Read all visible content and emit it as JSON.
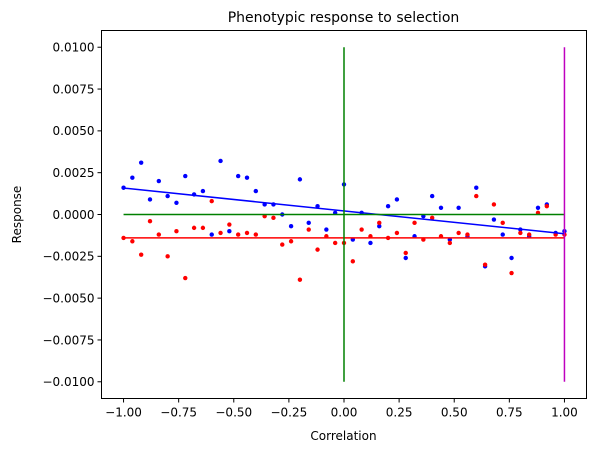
{
  "chart_data": {
    "type": "scatter",
    "title": "Phenotypic response to selection",
    "xlabel": "Correlation",
    "ylabel": "Response",
    "xlim": [
      -1.1,
      1.1
    ],
    "ylim": [
      -0.011,
      0.011
    ],
    "grid": false,
    "x_ticks": [
      -1.0,
      -0.75,
      -0.5,
      -0.25,
      0.0,
      0.25,
      0.5,
      0.75,
      1.0
    ],
    "x_tick_labels": [
      "−1.00",
      "−0.75",
      "−0.50",
      "−0.25",
      "0.00",
      "0.25",
      "0.50",
      "0.75",
      "1.00"
    ],
    "y_ticks": [
      -0.01,
      -0.0075,
      -0.005,
      -0.0025,
      0.0,
      0.0025,
      0.005,
      0.0075,
      0.01
    ],
    "y_tick_labels": [
      "−0.0100",
      "−0.0075",
      "−0.0050",
      "−0.0025",
      "0.0000",
      "0.0025",
      "0.0050",
      "0.0075",
      "0.0100"
    ],
    "series": [
      {
        "color": "#0000ff",
        "points": [
          [
            -1.0,
            0.0016
          ],
          [
            -0.96,
            0.0022
          ],
          [
            -0.92,
            0.0031
          ],
          [
            -0.88,
            0.0009
          ],
          [
            -0.84,
            0.002
          ],
          [
            -0.8,
            0.0011
          ],
          [
            -0.76,
            0.0007
          ],
          [
            -0.72,
            0.0023
          ],
          [
            -0.68,
            0.0012
          ],
          [
            -0.64,
            0.0014
          ],
          [
            -0.6,
            -0.0012
          ],
          [
            -0.56,
            0.0032
          ],
          [
            -0.52,
            -0.001
          ],
          [
            -0.48,
            0.0023
          ],
          [
            -0.44,
            0.0022
          ],
          [
            -0.4,
            0.0014
          ],
          [
            -0.36,
            0.0006
          ],
          [
            -0.32,
            0.0006
          ],
          [
            -0.28,
            0.0
          ],
          [
            -0.24,
            -0.0007
          ],
          [
            -0.2,
            0.0021
          ],
          [
            -0.16,
            -0.0005
          ],
          [
            -0.12,
            0.0005
          ],
          [
            -0.08,
            -0.0009
          ],
          [
            -0.04,
            0.0001
          ],
          [
            0.0,
            0.0018
          ],
          [
            0.04,
            -0.0015
          ],
          [
            0.08,
            0.0001
          ],
          [
            0.12,
            -0.0017
          ],
          [
            0.16,
            -0.0007
          ],
          [
            0.2,
            0.0005
          ],
          [
            0.24,
            0.0009
          ],
          [
            0.28,
            -0.0026
          ],
          [
            0.32,
            -0.0013
          ],
          [
            0.36,
            -0.0001
          ],
          [
            0.4,
            0.0011
          ],
          [
            0.44,
            0.0004
          ],
          [
            0.48,
            -0.0015
          ],
          [
            0.52,
            0.0004
          ],
          [
            0.56,
            -0.0013
          ],
          [
            0.6,
            0.0016
          ],
          [
            0.64,
            -0.0031
          ],
          [
            0.68,
            -0.0003
          ],
          [
            0.72,
            -0.0012
          ],
          [
            0.76,
            -0.0026
          ],
          [
            0.8,
            -0.0009
          ],
          [
            0.84,
            -0.0013
          ],
          [
            0.88,
            0.0004
          ],
          [
            0.92,
            0.0006
          ],
          [
            0.96,
            -0.0011
          ],
          [
            1.0,
            -0.001
          ]
        ]
      },
      {
        "color": "#ff0000",
        "points": [
          [
            -1.0,
            -0.0014
          ],
          [
            -0.96,
            -0.0016
          ],
          [
            -0.92,
            -0.0024
          ],
          [
            -0.88,
            -0.0004
          ],
          [
            -0.84,
            -0.0012
          ],
          [
            -0.8,
            -0.0025
          ],
          [
            -0.76,
            -0.001
          ],
          [
            -0.72,
            -0.0038
          ],
          [
            -0.68,
            -0.0008
          ],
          [
            -0.64,
            -0.0008
          ],
          [
            -0.6,
            0.0008
          ],
          [
            -0.56,
            -0.0011
          ],
          [
            -0.52,
            -0.0006
          ],
          [
            -0.48,
            -0.0012
          ],
          [
            -0.44,
            -0.0011
          ],
          [
            -0.4,
            -0.0012
          ],
          [
            -0.36,
            -0.0001
          ],
          [
            -0.32,
            -0.0002
          ],
          [
            -0.28,
            -0.0018
          ],
          [
            -0.24,
            -0.0016
          ],
          [
            -0.2,
            -0.0039
          ],
          [
            -0.16,
            -0.0009
          ],
          [
            -0.12,
            -0.0021
          ],
          [
            -0.08,
            -0.0013
          ],
          [
            -0.04,
            -0.0017
          ],
          [
            0.0,
            -0.0017
          ],
          [
            0.04,
            -0.0028
          ],
          [
            0.08,
            -0.0009
          ],
          [
            0.12,
            -0.0013
          ],
          [
            0.16,
            -0.0005
          ],
          [
            0.2,
            -0.0014
          ],
          [
            0.24,
            -0.0011
          ],
          [
            0.28,
            -0.0023
          ],
          [
            0.32,
            -0.0005
          ],
          [
            0.36,
            -0.0015
          ],
          [
            0.4,
            -0.0002
          ],
          [
            0.44,
            -0.0013
          ],
          [
            0.48,
            -0.0017
          ],
          [
            0.52,
            -0.0011
          ],
          [
            0.56,
            -0.0012
          ],
          [
            0.6,
            0.0011
          ],
          [
            0.64,
            -0.003
          ],
          [
            0.68,
            0.0006
          ],
          [
            0.72,
            -0.0005
          ],
          [
            0.76,
            -0.0035
          ],
          [
            0.8,
            -0.0011
          ],
          [
            0.84,
            -0.0012
          ],
          [
            0.88,
            0.0001
          ],
          [
            0.92,
            0.0005
          ],
          [
            0.96,
            -0.0012
          ],
          [
            1.0,
            -0.0012
          ]
        ]
      }
    ],
    "lines": [
      {
        "color": "#0000ff",
        "x": [
          -1.0,
          1.0
        ],
        "y": [
          0.00158,
          -0.00115
        ]
      },
      {
        "color": "#ff0000",
        "x": [
          -1.0,
          1.0
        ],
        "y": [
          -0.0014,
          -0.0014
        ]
      },
      {
        "color": "#008000",
        "x": [
          -1.0,
          1.0
        ],
        "y": [
          0.0,
          0.0
        ]
      },
      {
        "color": "#008000",
        "x": [
          0.0,
          0.0
        ],
        "y": [
          -0.01,
          0.01
        ]
      },
      {
        "color": "#bf00bf",
        "x": [
          1.0,
          1.0
        ],
        "y": [
          -0.01,
          0.01
        ]
      }
    ]
  }
}
